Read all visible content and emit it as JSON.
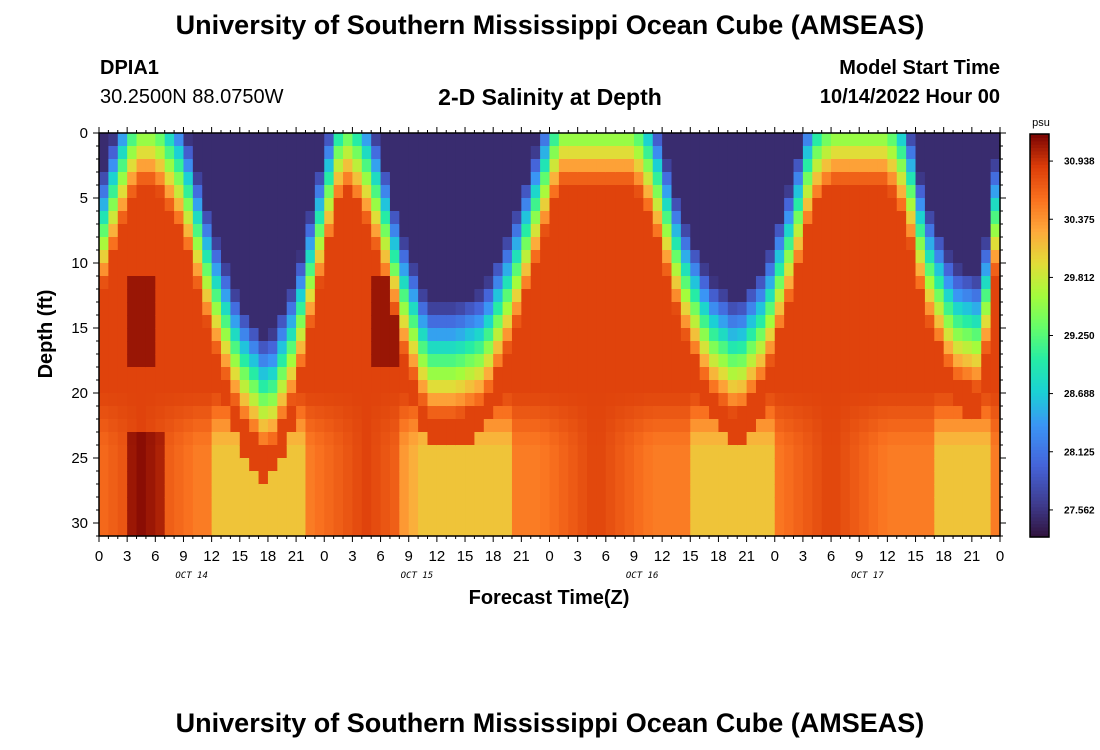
{
  "header": {
    "title": "University of Southern Mississippi Ocean Cube (AMSEAS)",
    "station_id": "DPIA1",
    "station_coords": "30.2500N  88.0750W",
    "plot_title": "2-D Salinity at Depth",
    "model_start_label": "Model Start Time",
    "model_start_value": "10/14/2022 Hour 00"
  },
  "footer": {
    "title": "University of Southern Mississippi Ocean Cube (AMSEAS)"
  },
  "chart_data": {
    "type": "heatmap",
    "title": "2-D Salinity at Depth",
    "xlabel": "Forecast Time(Z)",
    "ylabel": "Depth (ft)",
    "x_range_hours": [
      0,
      96
    ],
    "x_tick_hours": [
      0,
      3,
      6,
      9,
      12,
      15,
      18,
      21,
      24,
      27,
      30,
      33,
      36,
      39,
      42,
      45,
      48,
      51,
      54,
      57,
      60,
      63,
      66,
      69,
      72,
      75,
      78,
      81,
      84,
      87,
      90,
      93,
      96
    ],
    "x_tick_labels": [
      "0",
      "3",
      "6",
      "9",
      "12",
      "15",
      "18",
      "21",
      "0",
      "3",
      "6",
      "9",
      "12",
      "15",
      "18",
      "21",
      "0",
      "3",
      "6",
      "9",
      "12",
      "15",
      "18",
      "21",
      "0",
      "3",
      "6",
      "9",
      "12",
      "15",
      "18",
      "21",
      "0"
    ],
    "day_labels": [
      {
        "label": "OCT 14",
        "hour": 12
      },
      {
        "label": "OCT 15",
        "hour": 36
      },
      {
        "label": "OCT 16",
        "hour": 60
      },
      {
        "label": "OCT 17",
        "hour": 84
      }
    ],
    "y_range_ft": [
      0,
      31
    ],
    "y_ticks": [
      0,
      5,
      10,
      15,
      20,
      25,
      30
    ],
    "colorbar": {
      "unit": "psu",
      "min": 27.3,
      "max": 31.2,
      "tick_values": [
        30.938,
        30.375,
        29.812,
        29.25,
        28.688,
        28.125,
        27.562
      ],
      "tick_labels": [
        "30.938",
        "30.375",
        "29.812",
        "29.250",
        "28.688",
        "28.125",
        "27.562"
      ]
    },
    "fresh_layer_bottom_depth_ft": {
      "hours": [
        0,
        2,
        4,
        6,
        9,
        12,
        15,
        18,
        21,
        24,
        26,
        28,
        30,
        32,
        35,
        38,
        41,
        44,
        47,
        49,
        51,
        53,
        55,
        57,
        59,
        62,
        65,
        68,
        71,
        74,
        76,
        78,
        80,
        82,
        84,
        86,
        88,
        91,
        94,
        96
      ],
      "depth_ft": [
        9,
        4,
        0,
        0,
        4,
        12,
        18,
        21,
        16,
        6,
        0,
        2,
        6,
        12,
        18,
        18,
        17,
        12,
        5,
        0,
        0,
        0,
        0,
        0,
        3,
        11,
        16,
        18,
        15,
        8,
        2,
        0,
        0,
        0,
        0,
        3,
        10,
        15,
        16,
        4
      ]
    }
  }
}
